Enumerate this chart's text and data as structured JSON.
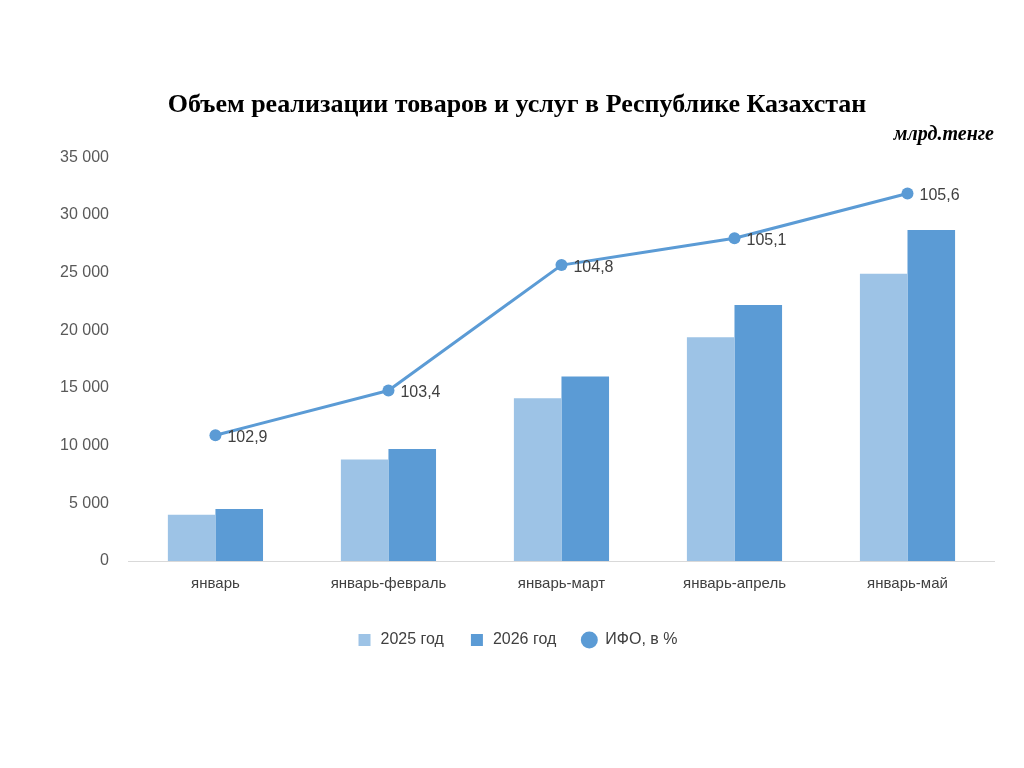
{
  "chart_data": {
    "type": "bar",
    "title": "Объем реализации товаров и услуг в Республике Казахстан",
    "subtitle": "млрд.тенге",
    "categories": [
      "январь",
      "январь-февраль",
      "январь-март",
      "январь-апрель",
      "январь-май"
    ],
    "series": [
      {
        "name": "2025 год",
        "color": "#9dc3e6",
        "values": [
          4000,
          8800,
          14100,
          19400,
          24900
        ]
      },
      {
        "name": "2026 год",
        "color": "#5b9bd5",
        "values": [
          4500,
          9700,
          16000,
          22200,
          28700
        ]
      },
      {
        "name": "ИФО, в %",
        "type": "line",
        "axis": "y2",
        "color": "#5b9bd5",
        "values": [
          102.9,
          103.4,
          104.8,
          105.1,
          105.6
        ],
        "value_labels": [
          "102,9",
          "103,4",
          "104,8",
          "105,1",
          "105,6"
        ],
        "marker": "circle",
        "line_style": "solid"
      }
    ],
    "ylim": [
      0,
      35000
    ],
    "yticks": [
      {
        "value": 0,
        "label": "0"
      },
      {
        "value": 5000,
        "label": "5 000"
      },
      {
        "value": 10000,
        "label": "10 000"
      },
      {
        "value": 15000,
        "label": "15 000"
      },
      {
        "value": 20000,
        "label": "20 000"
      },
      {
        "value": 25000,
        "label": "25 000"
      },
      {
        "value": 30000,
        "label": "30 000"
      },
      {
        "value": 35000,
        "label": "35 000"
      }
    ],
    "grid": false,
    "legend": "bottom"
  }
}
